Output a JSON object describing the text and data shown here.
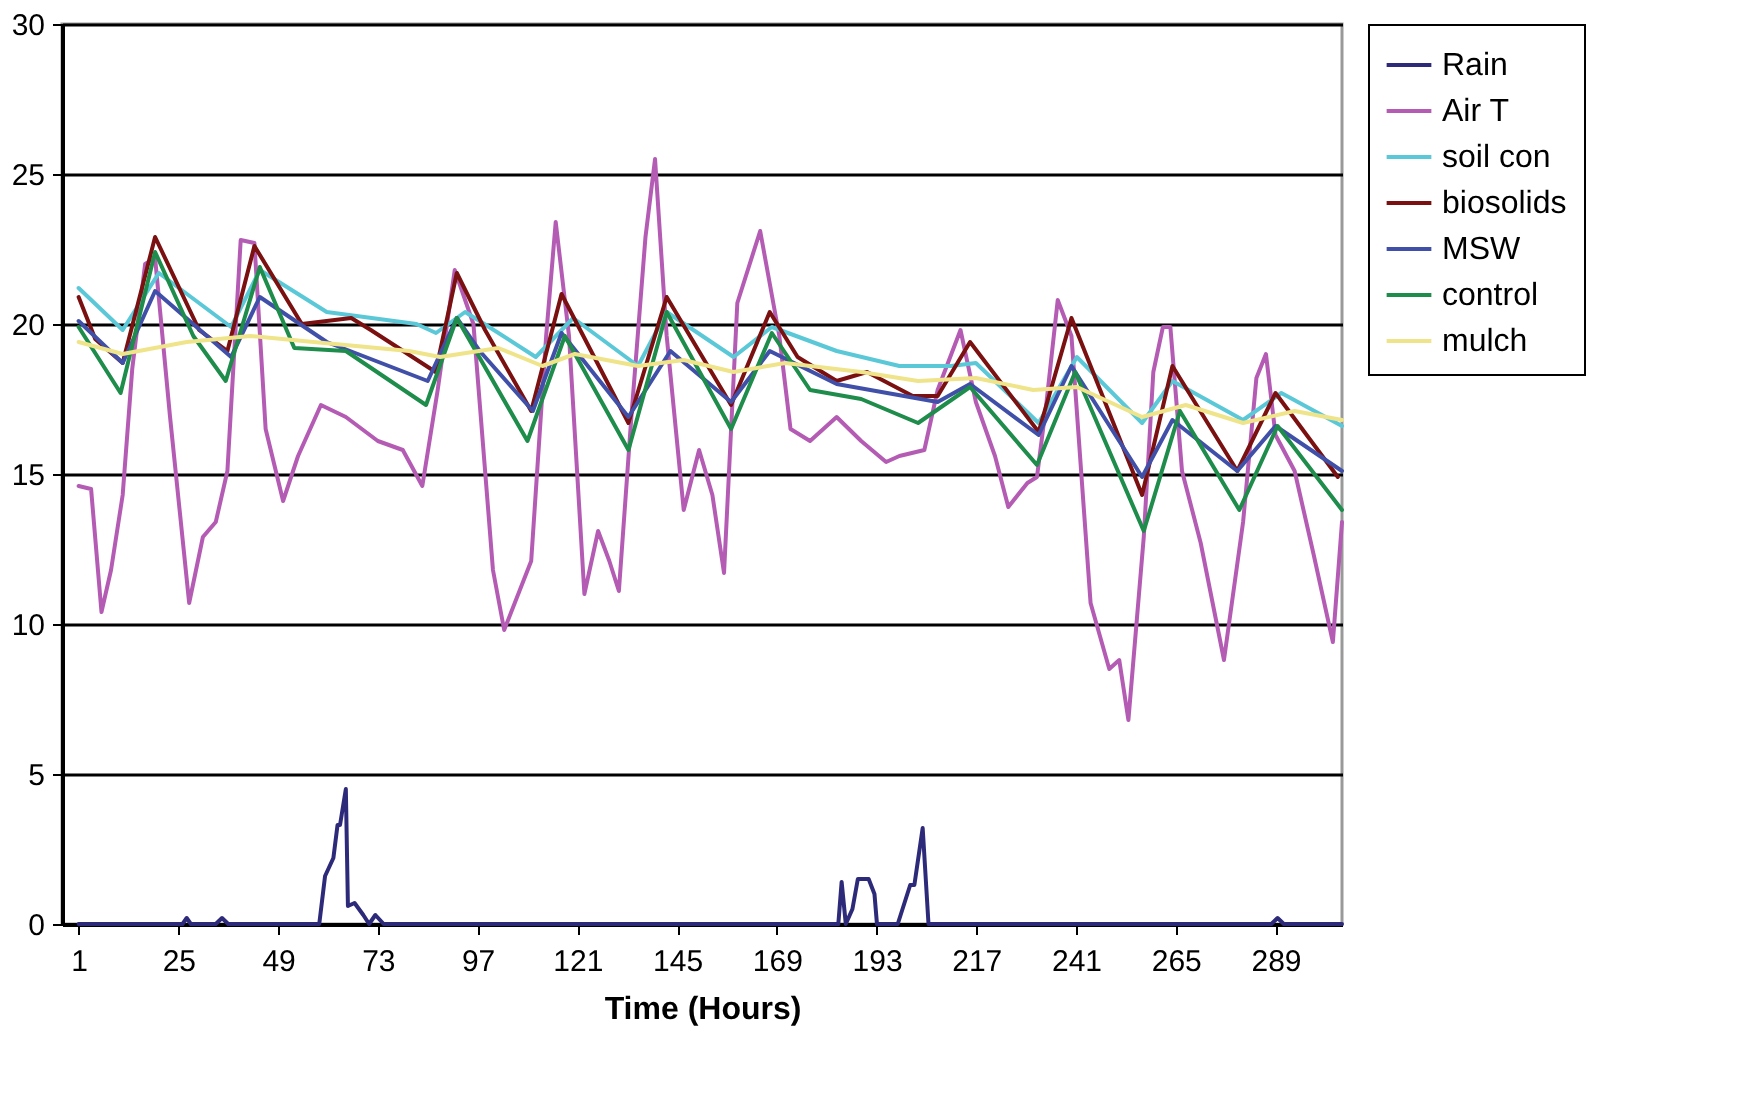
{
  "chart_data": {
    "type": "line",
    "xlabel": "Time (Hours)",
    "xlim": [
      -3,
      305
    ],
    "xticks": [
      1,
      25,
      49,
      73,
      97,
      121,
      145,
      169,
      193,
      217,
      241,
      265,
      289
    ],
    "ylim": [
      0,
      30
    ],
    "yticks": [
      0,
      5,
      10,
      15,
      20,
      25,
      30
    ],
    "grid": "y",
    "legend": "right",
    "line_style": "solid",
    "series": [
      {
        "name": "Rain",
        "color": "#2e2a7a",
        "x": [
          1,
          24,
          26,
          27,
          28,
          34,
          35.5,
          37,
          58.9,
          60.3,
          62.3,
          63.3,
          63.9,
          65.3,
          65.8,
          67.4,
          69.5,
          70.9,
          72.4,
          74.4,
          183.8,
          184.6,
          185.6,
          187.2,
          188.5,
          191.1,
          192.5,
          193.1,
          198.1,
          201.1,
          202.1,
          204.1,
          205.5,
          288,
          289.5,
          291,
          305
        ],
        "values": [
          0,
          0,
          0,
          0.2,
          0,
          0,
          0.2,
          0,
          0,
          1.6,
          2.2,
          3.3,
          3.3,
          4.5,
          0.6,
          0.7,
          0.3,
          0,
          0.3,
          0,
          0,
          1.4,
          0,
          0.5,
          1.5,
          1.5,
          1.0,
          0,
          0,
          1.3,
          1.3,
          3.2,
          0,
          0,
          0.2,
          0,
          0
        ]
      },
      {
        "name": "Air T",
        "color": "#b45cb4",
        "x": [
          1,
          4,
          6.5,
          8.8,
          11.6,
          13.9,
          17,
          19.4,
          23,
          27.6,
          30.9,
          34,
          36.8,
          40,
          43.3,
          46,
          50.2,
          53.8,
          59.3,
          65.3,
          73,
          79,
          83.7,
          87.4,
          91.5,
          96,
          100.7,
          103.4,
          109.9,
          113.5,
          115.8,
          119,
          122.7,
          126,
          128.7,
          131,
          134,
          137.4,
          139.7,
          142.5,
          146.6,
          150.3,
          153.5,
          156.3,
          159.5,
          165,
          169.6,
          172.3,
          177,
          183.4,
          189.3,
          195.3,
          198.5,
          204.5,
          207.7,
          213.2,
          216.9,
          221.5,
          224.7,
          229.3,
          231.6,
          233.9,
          236.6,
          239.9,
          244.5,
          249,
          251.4,
          253.6,
          257.3,
          259.6,
          261.9,
          263.7,
          266.5,
          271,
          276.6,
          281.2,
          284.4,
          286.7,
          289,
          293.6,
          298.2,
          302.8,
          305
        ],
        "values": [
          14.6,
          14.5,
          10.4,
          11.8,
          14.3,
          18.5,
          22.0,
          22.2,
          16.9,
          10.7,
          12.9,
          13.4,
          15.1,
          22.8,
          22.7,
          16.5,
          14.1,
          15.6,
          17.3,
          16.9,
          16.1,
          15.8,
          14.6,
          17.8,
          21.8,
          20.0,
          11.8,
          9.8,
          12.1,
          19.6,
          23.4,
          19.6,
          11.0,
          13.1,
          12.1,
          11.1,
          16.9,
          22.9,
          25.5,
          19.6,
          13.8,
          15.8,
          14.3,
          11.7,
          20.7,
          23.1,
          19.6,
          16.5,
          16.1,
          16.9,
          16.1,
          15.4,
          15.6,
          15.8,
          17.8,
          19.8,
          17.4,
          15.6,
          13.9,
          14.7,
          14.9,
          17.4,
          20.8,
          19.6,
          10.7,
          8.5,
          8.8,
          6.8,
          12.9,
          18.4,
          19.9,
          19.9,
          15.1,
          12.7,
          8.8,
          13.4,
          18.2,
          19.0,
          16.3,
          15.1,
          12.3,
          9.4,
          13.4
        ]
      },
      {
        "name": "soil con",
        "color": "#5bc8d8",
        "x": [
          1,
          11.6,
          20.3,
          37.7,
          44.6,
          60.7,
          82.3,
          87,
          94,
          97.5,
          111,
          120,
          135.6,
          142.5,
          158.6,
          167.8,
          183.4,
          198.5,
          210.9,
          216.9,
          232,
          241.2,
          256.9,
          264.2,
          281.2,
          290.4,
          305
        ],
        "values": [
          21.2,
          19.8,
          21.7,
          19.9,
          21.8,
          20.4,
          20.0,
          19.7,
          20.4,
          20.1,
          18.9,
          20.2,
          18.6,
          20.4,
          18.9,
          19.9,
          19.1,
          18.6,
          18.6,
          18.7,
          16.7,
          18.9,
          16.7,
          18.1,
          16.8,
          17.7,
          16.6
        ]
      },
      {
        "name": "biosolids",
        "color": "#7a1010",
        "x": [
          1,
          5,
          11.6,
          19.4,
          30,
          36.8,
          43.3,
          54.7,
          66.6,
          71.3,
          86.9,
          92,
          98.8,
          109.9,
          117.2,
          133.3,
          142.5,
          158,
          167.3,
          174,
          183.4,
          190.7,
          201.7,
          207.7,
          215.5,
          232,
          239.9,
          256.9,
          264.2,
          279.8,
          289,
          304
        ],
        "values": [
          20.9,
          19.5,
          18.7,
          22.9,
          19.8,
          19.1,
          22.6,
          20.0,
          20.2,
          19.8,
          18.4,
          21.7,
          19.8,
          17.1,
          21.0,
          16.7,
          20.9,
          17.3,
          20.4,
          18.9,
          18.1,
          18.4,
          17.6,
          17.6,
          19.4,
          16.4,
          20.2,
          14.3,
          18.6,
          15.1,
          17.7,
          14.9
        ]
      },
      {
        "name": "MSW",
        "color": "#4050a8",
        "x": [
          1,
          11.6,
          19.4,
          37.7,
          44.6,
          60.7,
          85,
          92,
          97.5,
          110.3,
          117.2,
          133.3,
          143.4,
          158,
          167.3,
          183.4,
          207.7,
          215.5,
          232,
          239.9,
          256.9,
          264.2,
          279.8,
          289,
          305
        ],
        "values": [
          20.1,
          18.7,
          21.1,
          18.9,
          20.9,
          19.4,
          18.1,
          20.2,
          19.1,
          17.1,
          19.7,
          16.9,
          19.1,
          17.4,
          19.1,
          18.0,
          17.4,
          18.0,
          16.3,
          18.6,
          14.9,
          16.8,
          15.1,
          16.6,
          15.1
        ]
      },
      {
        "name": "control",
        "color": "#1e8c4a",
        "x": [
          1,
          11.1,
          19.4,
          28.6,
          36.4,
          44.6,
          52.9,
          65.3,
          84.6,
          92,
          109,
          118,
          133.3,
          142.5,
          158,
          167.8,
          177,
          189.3,
          203,
          215.5,
          231.6,
          240.8,
          257.3,
          266,
          280.3,
          289.5,
          305
        ],
        "values": [
          19.9,
          17.7,
          22.4,
          19.6,
          18.1,
          21.9,
          19.2,
          19.1,
          17.3,
          20.2,
          16.1,
          19.6,
          15.8,
          20.4,
          16.5,
          19.7,
          17.8,
          17.5,
          16.7,
          17.9,
          15.3,
          18.4,
          13.1,
          17.1,
          13.8,
          16.6,
          13.8
        ]
      },
      {
        "name": "mulch",
        "color": "#efe48a",
        "x": [
          1,
          11.6,
          27,
          42.3,
          57.5,
          80.5,
          88,
          102,
          112.6,
          120.4,
          135.6,
          146.6,
          158.6,
          171,
          189.3,
          203,
          216.9,
          230.7,
          241.2,
          256.9,
          267.4,
          281.2,
          293.6,
          305
        ],
        "values": [
          19.4,
          19.0,
          19.4,
          19.6,
          19.4,
          19.1,
          18.9,
          19.2,
          18.6,
          19.0,
          18.6,
          18.8,
          18.4,
          18.7,
          18.4,
          18.1,
          18.2,
          17.8,
          17.9,
          16.9,
          17.3,
          16.7,
          17.1,
          16.8
        ]
      }
    ]
  }
}
